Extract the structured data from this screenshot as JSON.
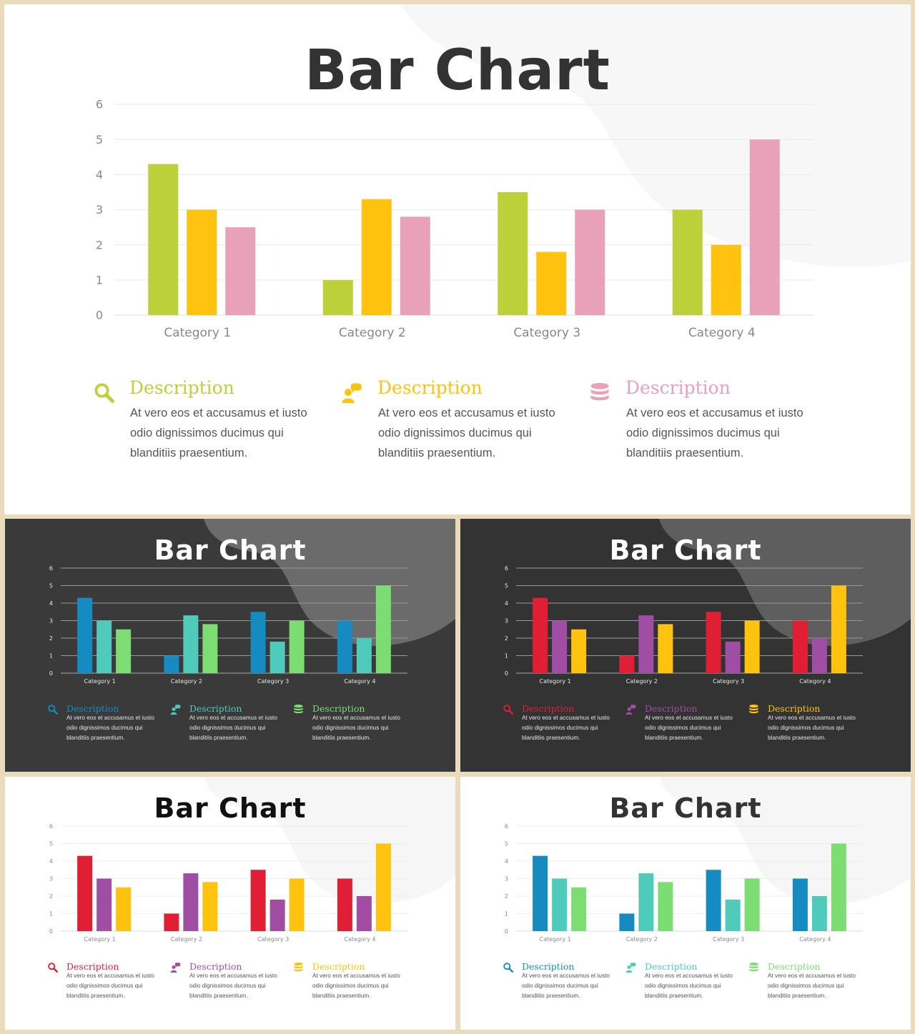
{
  "chart_data": [
    {
      "type": "bar",
      "title": "Bar Chart",
      "categories": [
        "Category 1",
        "Category 2",
        "Category 3",
        "Category 4"
      ],
      "series": [
        {
          "values": [
            4.3,
            1.0,
            3.5,
            3.0
          ]
        },
        {
          "values": [
            3.0,
            3.3,
            1.8,
            2.0
          ]
        },
        {
          "values": [
            2.5,
            2.8,
            3.0,
            5.0
          ]
        }
      ],
      "ylim": [
        0,
        6
      ],
      "yticks": [
        "0",
        "1",
        "2",
        "3",
        "4",
        "5",
        "6"
      ],
      "grid": true,
      "colors": [
        "#bcd03a",
        "#ffc20e",
        "#e8a1b8"
      ],
      "theme": "light"
    },
    {
      "type": "bar",
      "title": "Bar Chart",
      "categories": [
        "Category 1",
        "Category 2",
        "Category 3",
        "Category 4"
      ],
      "series": [
        {
          "values": [
            4.3,
            1.0,
            3.5,
            3.0
          ]
        },
        {
          "values": [
            3.0,
            3.3,
            1.8,
            2.0
          ]
        },
        {
          "values": [
            2.5,
            2.8,
            3.0,
            5.0
          ]
        }
      ],
      "ylim": [
        0,
        6
      ],
      "yticks": [
        "0",
        "1",
        "2",
        "3",
        "4",
        "5",
        "6"
      ],
      "grid": true,
      "colors": [
        "#168bc2",
        "#4ecbbb",
        "#7bdd72"
      ],
      "theme": "dark"
    },
    {
      "type": "bar",
      "title": "Bar Chart",
      "categories": [
        "Category 1",
        "Category 2",
        "Category 3",
        "Category 4"
      ],
      "series": [
        {
          "values": [
            4.3,
            1.0,
            3.5,
            3.0
          ]
        },
        {
          "values": [
            3.0,
            3.3,
            1.8,
            2.0
          ]
        },
        {
          "values": [
            2.5,
            2.8,
            3.0,
            5.0
          ]
        }
      ],
      "ylim": [
        0,
        6
      ],
      "yticks": [
        "0",
        "1",
        "2",
        "3",
        "4",
        "5",
        "6"
      ],
      "grid": true,
      "colors": [
        "#e01f34",
        "#a04ea3",
        "#ffc20e"
      ],
      "theme": "dark"
    },
    {
      "type": "bar",
      "title": "Bar Chart",
      "categories": [
        "Category 1",
        "Category 2",
        "Category 3",
        "Category 4"
      ],
      "series": [
        {
          "values": [
            4.3,
            1.0,
            3.5,
            3.0
          ]
        },
        {
          "values": [
            3.0,
            3.3,
            1.8,
            2.0
          ]
        },
        {
          "values": [
            2.5,
            2.8,
            3.0,
            5.0
          ]
        }
      ],
      "ylim": [
        0,
        6
      ],
      "yticks": [
        "0",
        "1",
        "2",
        "3",
        "4",
        "5",
        "6"
      ],
      "grid": true,
      "colors": [
        "#e01f34",
        "#a04ea3",
        "#ffc20e"
      ],
      "theme": "light-black-title"
    },
    {
      "type": "bar",
      "title": "Bar Chart",
      "categories": [
        "Category 1",
        "Category 2",
        "Category 3",
        "Category 4"
      ],
      "series": [
        {
          "values": [
            4.3,
            1.0,
            3.5,
            3.0
          ]
        },
        {
          "values": [
            3.0,
            3.3,
            1.8,
            2.0
          ]
        },
        {
          "values": [
            2.5,
            2.8,
            3.0,
            5.0
          ]
        }
      ],
      "ylim": [
        0,
        6
      ],
      "yticks": [
        "0",
        "1",
        "2",
        "3",
        "4",
        "5",
        "6"
      ],
      "grid": true,
      "colors": [
        "#168bc2",
        "#4ecbbb",
        "#7bdd72"
      ],
      "theme": "light"
    }
  ],
  "descriptions": [
    {
      "icon": "search-icon",
      "heading": "Description",
      "body_lines": [
        "At vero eos et accusamus et iusto",
        "odio dignissimos ducimus qui",
        "blanditiis praesentium."
      ]
    },
    {
      "icon": "user-chat-icon",
      "heading": "Description",
      "body_lines": [
        "At vero eos et accusamus et iusto",
        "odio dignissimos ducimus qui",
        "blanditiis praesentium."
      ]
    },
    {
      "icon": "database-icon",
      "heading": "Description",
      "body_lines": [
        "At vero eos et accusamus et iusto",
        "odio dignissimos ducimus qui",
        "blanditiis praesentium."
      ]
    }
  ]
}
